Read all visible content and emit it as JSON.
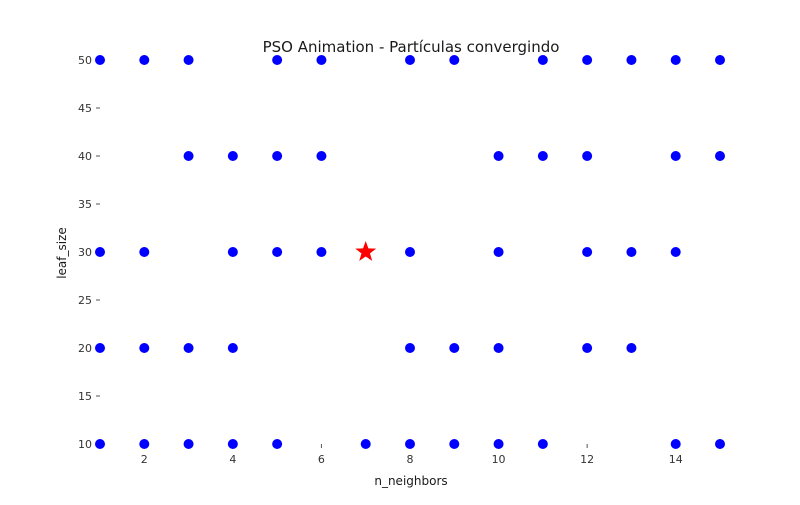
{
  "chart_data": {
    "type": "scatter",
    "title": "PSO Animation - Partículas convergindo",
    "xlabel": "n_neighbors",
    "ylabel": "leaf_size",
    "xlim": [
      1,
      15
    ],
    "ylim": [
      10,
      50
    ],
    "xticks": [
      2,
      4,
      6,
      8,
      10,
      12,
      14
    ],
    "yticks": [
      10,
      15,
      20,
      25,
      30,
      35,
      40,
      45,
      50
    ],
    "grid": false,
    "particle_color": "#0000ff",
    "best_color": "#ff0000",
    "particles": [
      {
        "x": 1,
        "y": 50
      },
      {
        "x": 2,
        "y": 50
      },
      {
        "x": 3,
        "y": 50
      },
      {
        "x": 5,
        "y": 50
      },
      {
        "x": 6,
        "y": 50
      },
      {
        "x": 8,
        "y": 50
      },
      {
        "x": 9,
        "y": 50
      },
      {
        "x": 11,
        "y": 50
      },
      {
        "x": 12,
        "y": 50
      },
      {
        "x": 13,
        "y": 50
      },
      {
        "x": 14,
        "y": 50
      },
      {
        "x": 15,
        "y": 50
      },
      {
        "x": 3,
        "y": 40
      },
      {
        "x": 4,
        "y": 40
      },
      {
        "x": 5,
        "y": 40
      },
      {
        "x": 6,
        "y": 40
      },
      {
        "x": 10,
        "y": 40
      },
      {
        "x": 11,
        "y": 40
      },
      {
        "x": 12,
        "y": 40
      },
      {
        "x": 14,
        "y": 40
      },
      {
        "x": 15,
        "y": 40
      },
      {
        "x": 1,
        "y": 30
      },
      {
        "x": 2,
        "y": 30
      },
      {
        "x": 4,
        "y": 30
      },
      {
        "x": 5,
        "y": 30
      },
      {
        "x": 6,
        "y": 30
      },
      {
        "x": 8,
        "y": 30
      },
      {
        "x": 10,
        "y": 30
      },
      {
        "x": 12,
        "y": 30
      },
      {
        "x": 13,
        "y": 30
      },
      {
        "x": 14,
        "y": 30
      },
      {
        "x": 1,
        "y": 20
      },
      {
        "x": 2,
        "y": 20
      },
      {
        "x": 3,
        "y": 20
      },
      {
        "x": 4,
        "y": 20
      },
      {
        "x": 8,
        "y": 20
      },
      {
        "x": 9,
        "y": 20
      },
      {
        "x": 10,
        "y": 20
      },
      {
        "x": 12,
        "y": 20
      },
      {
        "x": 13,
        "y": 20
      },
      {
        "x": 1,
        "y": 10
      },
      {
        "x": 2,
        "y": 10
      },
      {
        "x": 3,
        "y": 10
      },
      {
        "x": 4,
        "y": 10
      },
      {
        "x": 5,
        "y": 10
      },
      {
        "x": 7,
        "y": 10
      },
      {
        "x": 8,
        "y": 10
      },
      {
        "x": 9,
        "y": 10
      },
      {
        "x": 10,
        "y": 10
      },
      {
        "x": 11,
        "y": 10
      },
      {
        "x": 14,
        "y": 10
      },
      {
        "x": 15,
        "y": 10
      }
    ],
    "best": {
      "x": 7,
      "y": 30
    }
  }
}
